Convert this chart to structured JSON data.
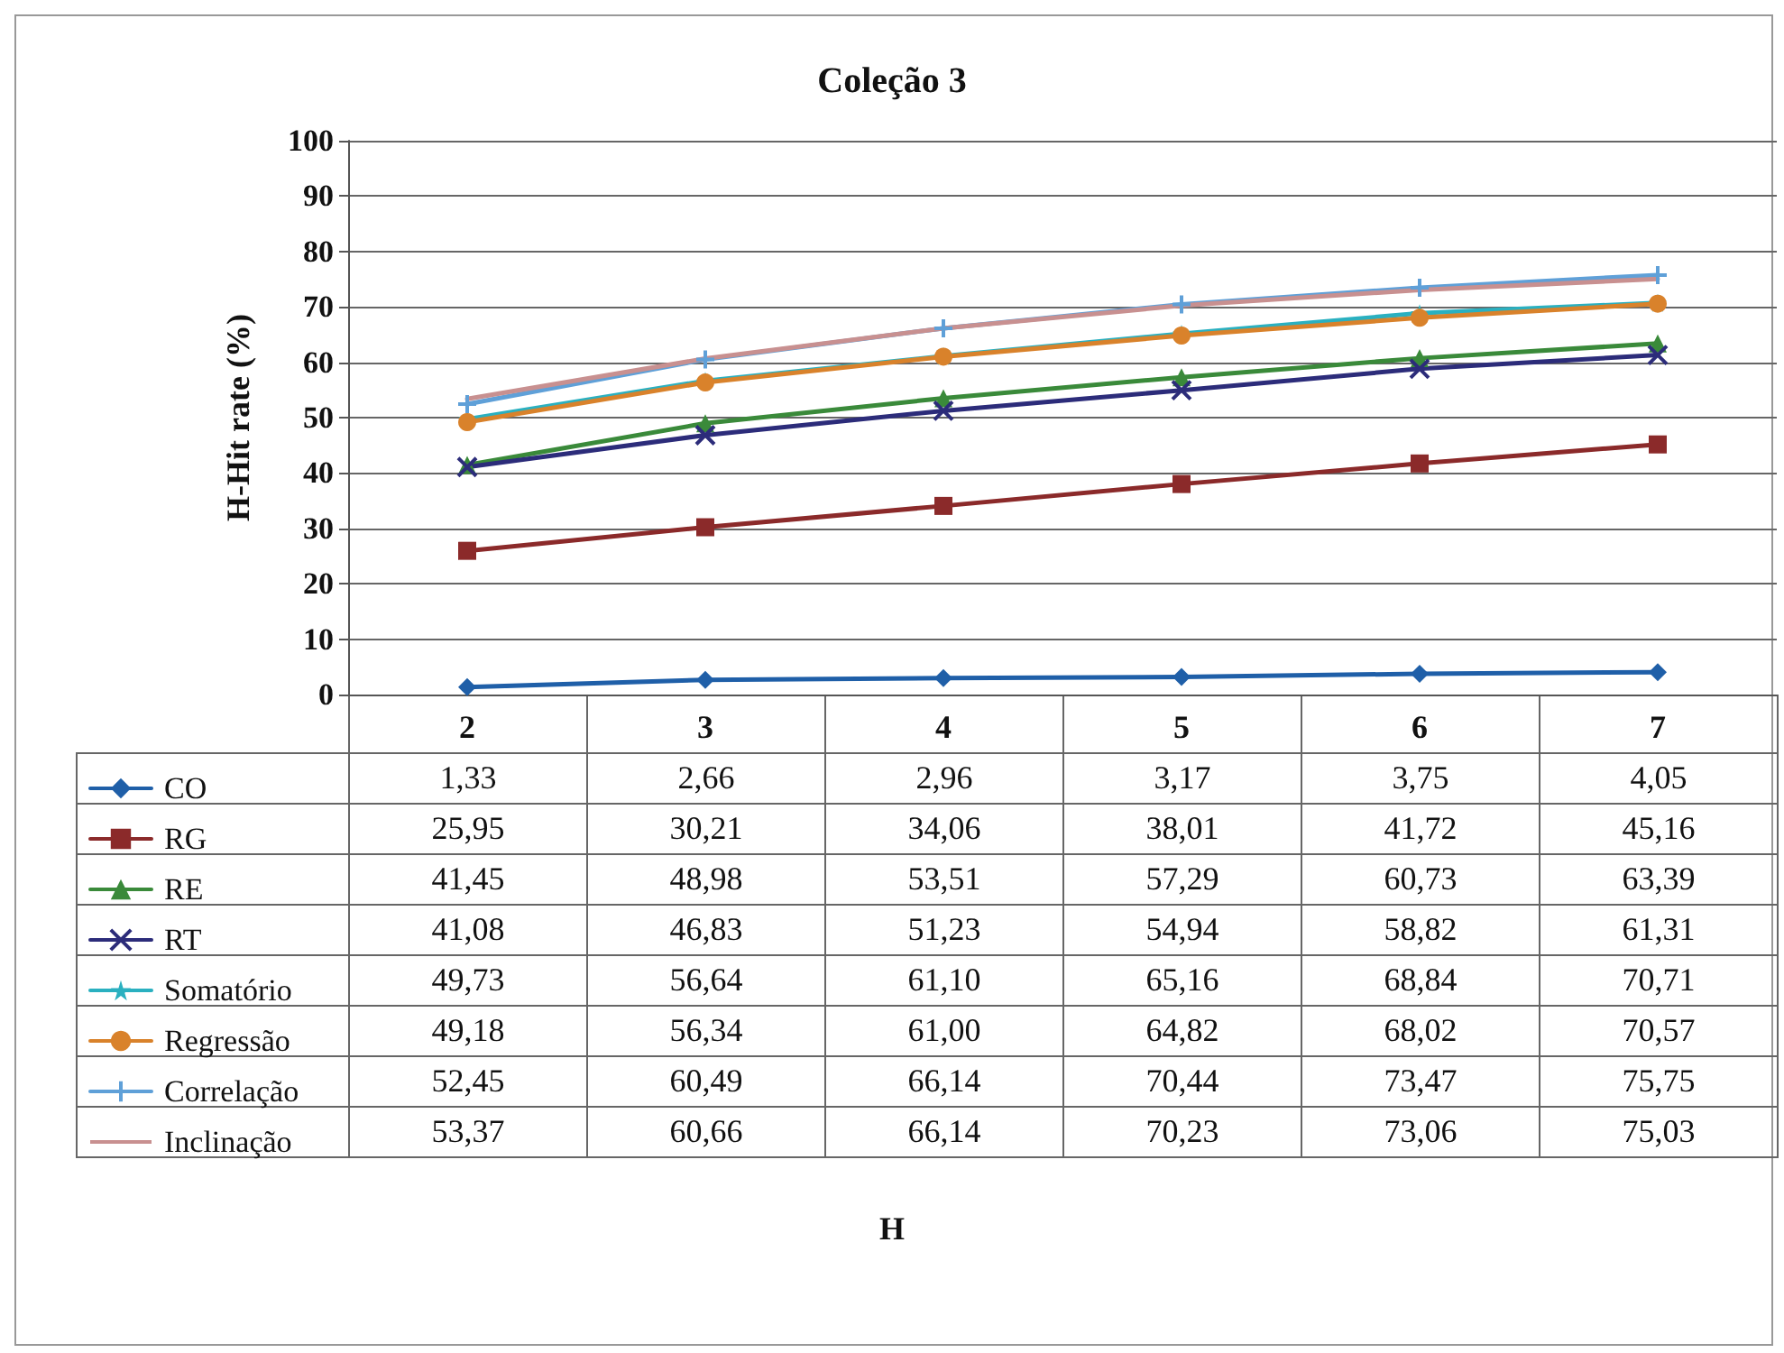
{
  "chart_data": {
    "type": "line",
    "title": "Coleção 3",
    "annotations": [
      "H"
    ],
    "ylabel": "H-Hit rate (%)",
    "categories": [
      "2",
      "3",
      "4",
      "5",
      "6",
      "7"
    ],
    "ylim": [
      0,
      100
    ],
    "yticks": [
      0,
      10,
      20,
      30,
      40,
      50,
      60,
      70,
      80,
      90,
      100
    ],
    "grid": "y",
    "legend": "left",
    "series": [
      {
        "name": "CO",
        "color": "#1f5fa8",
        "marker": "diamond",
        "values": [
          1.33,
          2.66,
          2.96,
          3.17,
          3.75,
          4.05
        ],
        "value_labels": [
          "1,33",
          "2,66",
          "2,96",
          "3,17",
          "3,75",
          "4,05"
        ]
      },
      {
        "name": "RG",
        "color": "#8b2a2a",
        "marker": "square",
        "values": [
          25.95,
          30.21,
          34.06,
          38.01,
          41.72,
          45.16
        ],
        "value_labels": [
          "25,95",
          "30,21",
          "34,06",
          "38,01",
          "41,72",
          "45,16"
        ]
      },
      {
        "name": "RE",
        "color": "#3a8a3a",
        "marker": "triangle",
        "values": [
          41.45,
          48.98,
          53.51,
          57.29,
          60.73,
          63.39
        ],
        "value_labels": [
          "41,45",
          "48,98",
          "53,51",
          "57,29",
          "60,73",
          "63,39"
        ]
      },
      {
        "name": "RT",
        "color": "#2c2c7a",
        "marker": "cross",
        "values": [
          41.08,
          46.83,
          51.23,
          54.94,
          58.82,
          61.31
        ],
        "value_labels": [
          "41,08",
          "46,83",
          "51,23",
          "54,94",
          "58,82",
          "61,31"
        ]
      },
      {
        "name": "Somatório",
        "color": "#2ab0c0",
        "marker": "star",
        "values": [
          49.73,
          56.64,
          61.1,
          65.16,
          68.84,
          70.71
        ],
        "value_labels": [
          "49,73",
          "56,64",
          "61,10",
          "65,16",
          "68,84",
          "70,71"
        ]
      },
      {
        "name": "Regressão",
        "color": "#d9822b",
        "marker": "circle",
        "values": [
          49.18,
          56.34,
          61.0,
          64.82,
          68.02,
          70.57
        ],
        "value_labels": [
          "49,18",
          "56,34",
          "61,00",
          "64,82",
          "68,02",
          "70,57"
        ]
      },
      {
        "name": "Correlação",
        "color": "#5fa0d8",
        "marker": "cross",
        "values": [
          52.45,
          60.49,
          66.14,
          70.44,
          73.47,
          75.75
        ],
        "value_labels": [
          "52,45",
          "60,49",
          "66,14",
          "70,44",
          "73,47",
          "75,75"
        ]
      },
      {
        "name": "Inclinação",
        "color": "#c89090",
        "marker": "none",
        "values": [
          53.37,
          60.66,
          66.14,
          70.23,
          73.06,
          75.03
        ],
        "value_labels": [
          "53,37",
          "60,66",
          "66,14",
          "70,23",
          "73,06",
          "75,03"
        ]
      }
    ]
  }
}
